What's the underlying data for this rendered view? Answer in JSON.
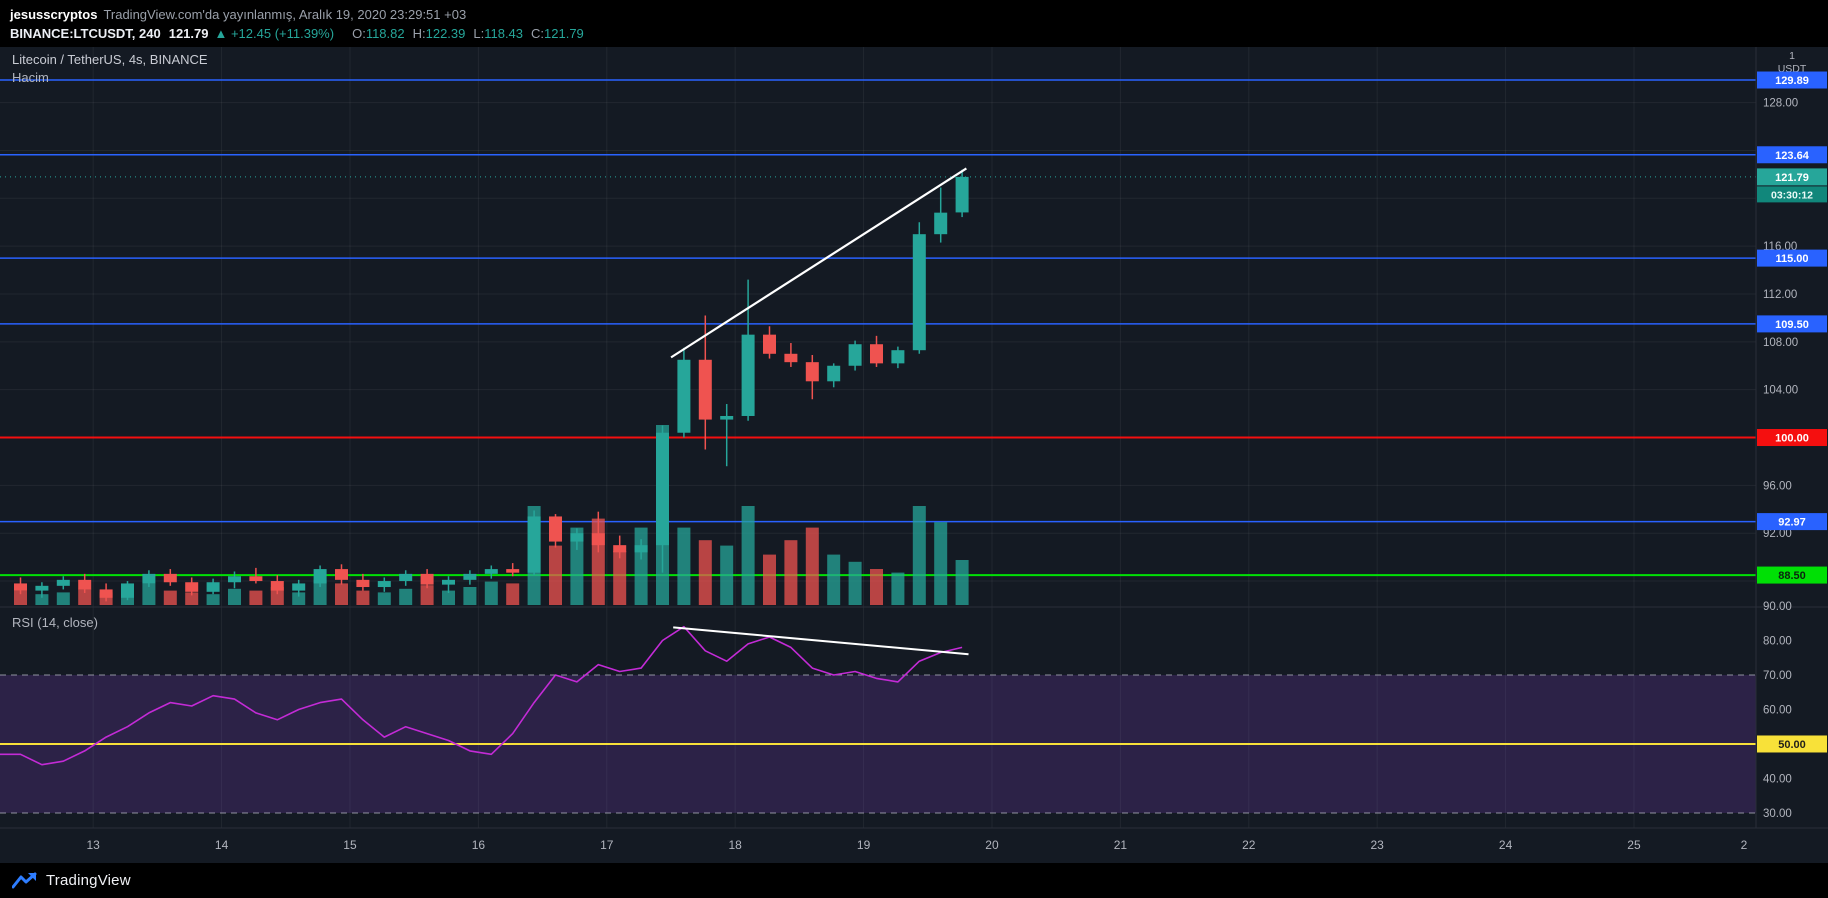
{
  "publish_bar": {
    "username": "jesusscryptos",
    "text": "TradingView.com'da yayınlanmış, Aralık 19, 2020 23:29:51 +03"
  },
  "symbol_bar": {
    "symbol": "BINANCE:LTCUSDT, 240",
    "price": "121.79",
    "change": "▲ +12.45 (+11.39%)",
    "ohlc": [
      {
        "label": "O:",
        "value": "118.82"
      },
      {
        "label": "H:",
        "value": "122.39"
      },
      {
        "label": "L:",
        "value": "118.43"
      },
      {
        "label": "C:",
        "value": "121.79"
      }
    ]
  },
  "legend": {
    "title": "Litecoin / TetherUS, 4s, BINANCE",
    "volume_label": "Hacim",
    "rsi_label": "RSI (14, close)"
  },
  "footer": {
    "brand": "TradingView"
  },
  "colors": {
    "background": "#141a23",
    "up": "#26a69a",
    "down": "#ef5350",
    "grid": "rgba(255,255,255,0.06)",
    "axis_text": "#b2b5be",
    "separator": "#2a2e39",
    "blue": "#2962ff",
    "red_level": "#f50f0f",
    "green_level": "#00e005",
    "yellow_level": "#f8e139",
    "last_badge": "#26a69a",
    "countdown_badge": "#11877b",
    "rsi_line": "#c32bd6",
    "rsi_band": "rgba(141,71,217,0.20)",
    "band_border": "#b7bac4",
    "trend": "#ffffff"
  },
  "chart_data": {
    "type": "candlestick",
    "symbol": "LTCUSDT",
    "exchange": "BINANCE",
    "interval": "240",
    "unit_top": "1",
    "unit": "USDT",
    "price_axis": {
      "min": 85.83,
      "max": 132.65,
      "labels": [
        {
          "v": 128,
          "t": "128.00"
        },
        {
          "v": 116,
          "t": "116.00"
        },
        {
          "v": 112,
          "t": "112.00"
        },
        {
          "v": 108,
          "t": "108.00"
        },
        {
          "v": 104,
          "t": "104.00"
        },
        {
          "v": 96,
          "t": "96.00"
        },
        {
          "v": 92,
          "t": "92.00"
        }
      ]
    },
    "rsi_axis": {
      "min": 25.65,
      "max": 89.7,
      "labels": [
        {
          "v": 90,
          "t": "90.00"
        },
        {
          "v": 80,
          "t": "80.00"
        },
        {
          "v": 70,
          "t": "70.00"
        },
        {
          "v": 60,
          "t": "60.00"
        },
        {
          "v": 40,
          "t": "40.00"
        },
        {
          "v": 30,
          "t": "30.00"
        }
      ]
    },
    "grid_prices": [
      128,
      124,
      120,
      116,
      112,
      108,
      104,
      100,
      96,
      92,
      88
    ],
    "time_labels": [
      "13",
      "14",
      "15",
      "16",
      "17",
      "18",
      "19",
      "20",
      "21",
      "22",
      "23",
      "24",
      "25",
      "2"
    ],
    "levels": [
      {
        "price": 129.89,
        "label": "129.89",
        "color": "#2962ff",
        "text_color": "#ffffff",
        "width": 1.5
      },
      {
        "price": 123.64,
        "label": "123.64",
        "color": "#2962ff",
        "text_color": "#ffffff",
        "width": 1.5
      },
      {
        "price": 115.0,
        "label": "115.00",
        "color": "#2962ff",
        "text_color": "#ffffff",
        "width": 1.5
      },
      {
        "price": 109.5,
        "label": "109.50",
        "color": "#2962ff",
        "text_color": "#ffffff",
        "width": 1.5
      },
      {
        "price": 100.0,
        "label": "100.00",
        "color": "#f50f0f",
        "text_color": "#ffffff",
        "width": 2
      },
      {
        "price": 92.97,
        "label": "92.97",
        "color": "#2962ff",
        "text_color": "#ffffff",
        "width": 1.5
      },
      {
        "price": 88.5,
        "label": "88.50",
        "color": "#00e005",
        "text_color": "#0b2410",
        "width": 2
      }
    ],
    "last_price": {
      "value": 121.79,
      "label": "121.79",
      "countdown": "03:30:12"
    },
    "rsi_band": {
      "upper": 70,
      "lower": 30
    },
    "rsi_levels": [
      {
        "value": 50,
        "label": "50.00",
        "color": "#f8e139",
        "text_color": "#23211a",
        "width": 2
      }
    ],
    "candles": [
      [
        87.8,
        88.3,
        86.9,
        87.2,
        0.08
      ],
      [
        87.2,
        87.9,
        86.6,
        87.6,
        0.06
      ],
      [
        87.6,
        88.4,
        87.3,
        88.1,
        0.07
      ],
      [
        88.1,
        88.6,
        87.0,
        87.3,
        0.09
      ],
      [
        87.3,
        87.8,
        86.3,
        86.6,
        0.07
      ],
      [
        86.6,
        88.0,
        86.4,
        87.8,
        0.1
      ],
      [
        87.8,
        88.9,
        87.5,
        88.6,
        0.12
      ],
      [
        88.6,
        89.0,
        87.6,
        87.9,
        0.08
      ],
      [
        87.9,
        88.3,
        86.8,
        87.1,
        0.07
      ],
      [
        87.1,
        88.2,
        86.9,
        87.9,
        0.06
      ],
      [
        87.9,
        88.8,
        87.4,
        88.4,
        0.09
      ],
      [
        88.4,
        89.1,
        87.8,
        88.0,
        0.08
      ],
      [
        88.0,
        88.5,
        86.9,
        87.2,
        0.1
      ],
      [
        87.2,
        88.1,
        86.7,
        87.8,
        0.07
      ],
      [
        87.8,
        89.3,
        87.5,
        89.0,
        0.14
      ],
      [
        89.0,
        89.4,
        87.7,
        88.1,
        0.12
      ],
      [
        88.1,
        88.6,
        87.2,
        87.5,
        0.08
      ],
      [
        87.5,
        88.3,
        87.1,
        88.0,
        0.07
      ],
      [
        88.0,
        88.9,
        87.6,
        88.6,
        0.09
      ],
      [
        88.6,
        89.0,
        87.4,
        87.7,
        0.11
      ],
      [
        87.7,
        88.4,
        87.0,
        88.1,
        0.08
      ],
      [
        88.1,
        88.9,
        87.7,
        88.6,
        0.1
      ],
      [
        88.6,
        89.3,
        88.2,
        89.0,
        0.13
      ],
      [
        89.0,
        89.5,
        88.4,
        88.7,
        0.12
      ],
      [
        88.7,
        93.9,
        88.5,
        93.4,
        0.55
      ],
      [
        93.4,
        93.6,
        90.8,
        91.3,
        0.33
      ],
      [
        91.3,
        92.4,
        90.6,
        92.0,
        0.43
      ],
      [
        92.0,
        93.8,
        90.4,
        91.0,
        0.48
      ],
      [
        91.0,
        91.8,
        89.9,
        90.4,
        0.3
      ],
      [
        90.4,
        91.5,
        89.8,
        91.0,
        0.43
      ],
      [
        91.0,
        101.0,
        88.7,
        100.4,
        1.0
      ],
      [
        100.4,
        107.5,
        100.0,
        106.5,
        0.43
      ],
      [
        106.5,
        110.2,
        99.0,
        101.5,
        0.36
      ],
      [
        101.5,
        102.8,
        97.6,
        101.8,
        0.33
      ],
      [
        101.8,
        113.2,
        101.4,
        108.6,
        0.55
      ],
      [
        108.6,
        109.3,
        106.6,
        107.0,
        0.28
      ],
      [
        107.0,
        107.9,
        105.9,
        106.3,
        0.36
      ],
      [
        106.3,
        106.9,
        103.2,
        104.7,
        0.43
      ],
      [
        104.7,
        106.2,
        104.2,
        106.0,
        0.28
      ],
      [
        106.0,
        108.1,
        105.6,
        107.8,
        0.24
      ],
      [
        107.8,
        108.5,
        105.9,
        106.2,
        0.2
      ],
      [
        106.2,
        107.6,
        105.8,
        107.3,
        0.18
      ],
      [
        107.3,
        118.0,
        107.0,
        117.0,
        0.55
      ],
      [
        117.0,
        120.9,
        116.3,
        118.8,
        0.46
      ],
      [
        118.82,
        122.39,
        118.43,
        121.79,
        0.25
      ]
    ],
    "rsi_values": [
      47,
      44,
      45,
      48,
      52,
      55,
      59,
      62,
      61,
      64,
      63,
      59,
      57,
      60,
      62,
      63,
      57,
      52,
      55,
      53,
      51,
      48,
      47,
      53,
      62,
      70,
      68,
      73,
      71,
      72,
      80,
      84,
      77,
      74,
      79,
      81,
      78,
      72,
      70,
      71,
      69,
      68,
      74,
      76.5,
      78
    ],
    "trendlines": {
      "price": {
        "i1": 30.4,
        "p1": 106.7,
        "i2": 44.2,
        "p2": 122.5
      },
      "rsi": {
        "i1": 30.5,
        "v1": 83.8,
        "i2": 44.3,
        "v2": 76.0
      }
    }
  }
}
